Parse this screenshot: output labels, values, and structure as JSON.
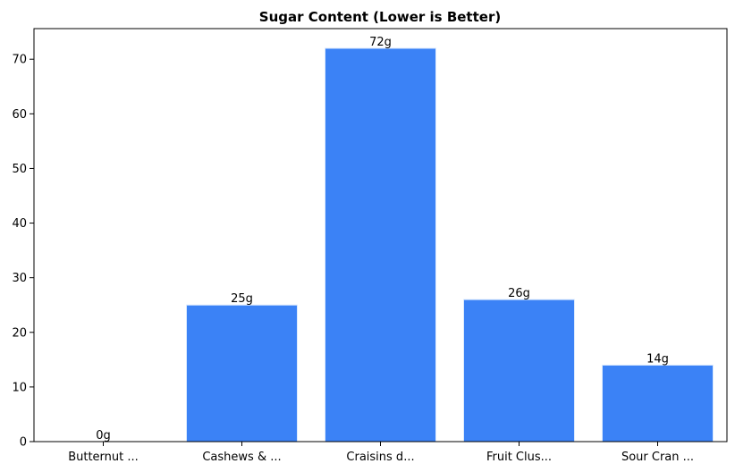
{
  "chart_data": {
    "type": "bar",
    "title": "Sugar Content (Lower is Better)",
    "xlabel": "",
    "ylabel": "",
    "categories": [
      "Butternut ...",
      "Cashews & ...",
      "Craisins d...",
      "Fruit Clus...",
      "Sour Cran ..."
    ],
    "values": [
      0,
      25,
      72,
      26,
      14
    ],
    "data_labels": [
      "0g",
      "25g",
      "72g",
      "26g",
      "14g"
    ],
    "yticks": [
      0,
      10,
      20,
      30,
      40,
      50,
      60,
      70
    ],
    "ylim": [
      0,
      75.6
    ],
    "grid": false,
    "bar_color": "#3b82f6",
    "bar_edge_color": "#dbeafe"
  }
}
